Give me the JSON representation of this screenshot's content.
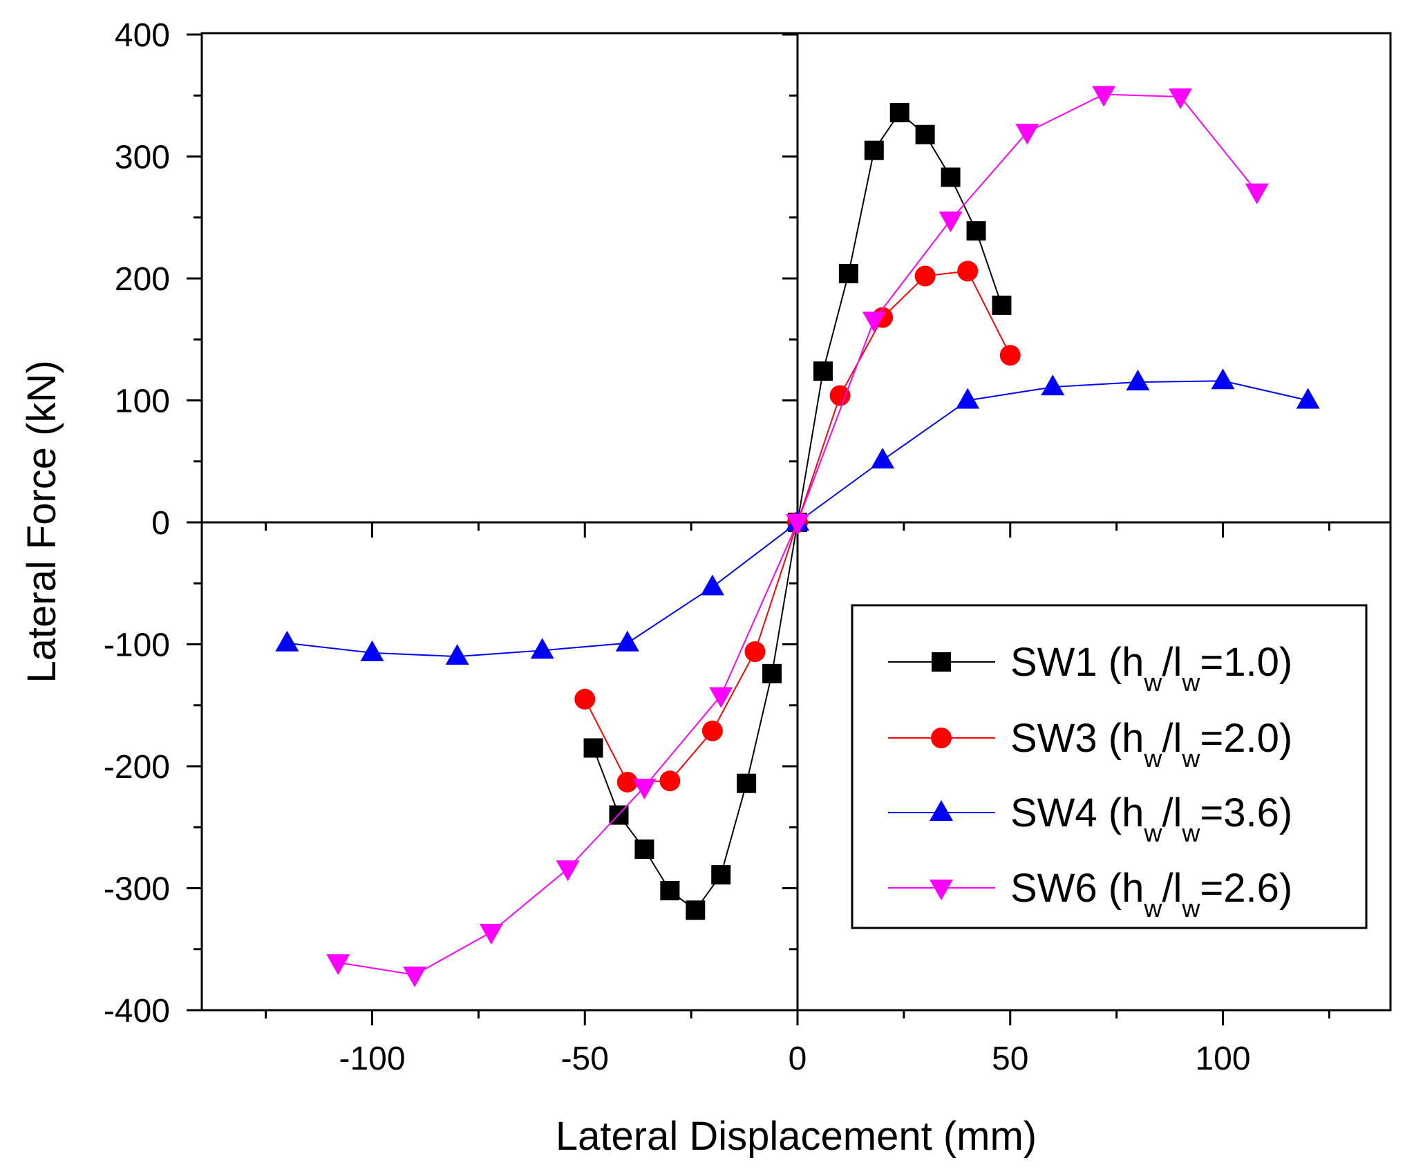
{
  "chart_data": {
    "type": "line",
    "title": "",
    "xlabel": "Lateral Displacement (mm)",
    "ylabel": "Lateral Force (kN)",
    "xlim": [
      -140,
      140
    ],
    "ylim": [
      -400,
      400
    ],
    "xticks": [
      -100,
      -50,
      0,
      50,
      100
    ],
    "xticks_minor": [
      -125,
      -75,
      -25,
      25,
      75,
      125
    ],
    "yticks": [
      -400,
      -300,
      -200,
      -100,
      0,
      100,
      200,
      300,
      400
    ],
    "yticks_minor": [
      -350,
      -250,
      -150,
      -50,
      50,
      150,
      250,
      350
    ],
    "grid": false,
    "legend_position": "bottom-right",
    "series": [
      {
        "name": "SW1",
        "legend": {
          "prefix": "SW1 (h",
          "sub1": "w",
          "mid": "/l",
          "sub2": "w",
          "suffix": "=1.0)"
        },
        "color": "#000000",
        "marker": "square",
        "x": [
          -48,
          -42,
          -36,
          -30,
          -24,
          -18,
          -12,
          -6,
          0,
          6,
          12,
          18,
          24,
          30,
          36,
          42,
          48
        ],
        "y": [
          -185,
          -240,
          -268,
          -302,
          -318,
          -289,
          -214,
          -124,
          0,
          124,
          204,
          305,
          336,
          318,
          283,
          239,
          178
        ]
      },
      {
        "name": "SW3",
        "legend": {
          "prefix": "SW3 (h",
          "sub1": "w",
          "mid": "/l",
          "sub2": "w",
          "suffix": "=2.0)"
        },
        "color": "#ff0000",
        "marker": "circle",
        "x": [
          -50,
          -40,
          -30,
          -20,
          -10,
          0,
          10,
          20,
          30,
          40,
          50
        ],
        "y": [
          -145,
          -213,
          -212,
          -171,
          -106,
          0,
          104,
          168,
          202,
          206,
          137
        ]
      },
      {
        "name": "SW4",
        "legend": {
          "prefix": "SW4 (h",
          "sub1": "w",
          "mid": "/l",
          "sub2": "w",
          "suffix": "=3.6)"
        },
        "color": "#0000ff",
        "marker": "triangle-up",
        "x": [
          -120,
          -100,
          -80,
          -60,
          -40,
          -20,
          0,
          20,
          40,
          60,
          80,
          100,
          120
        ],
        "y": [
          -99,
          -107,
          -110,
          -105,
          -99,
          -53,
          0,
          51,
          100,
          111,
          115,
          116,
          100
        ]
      },
      {
        "name": "SW6",
        "legend": {
          "prefix": "SW6 (h",
          "sub1": "w",
          "mid": "/l",
          "sub2": "w",
          "suffix": "=2.6)"
        },
        "color": "#ff00ff",
        "marker": "triangle-down",
        "x": [
          -108,
          -90,
          -72,
          -54,
          -36,
          -18,
          0,
          18,
          36,
          54,
          72,
          90,
          108
        ],
        "y": [
          -361,
          -371,
          -336,
          -284,
          -217,
          -142,
          0,
          166,
          248,
          320,
          351,
          349,
          271
        ]
      }
    ]
  }
}
